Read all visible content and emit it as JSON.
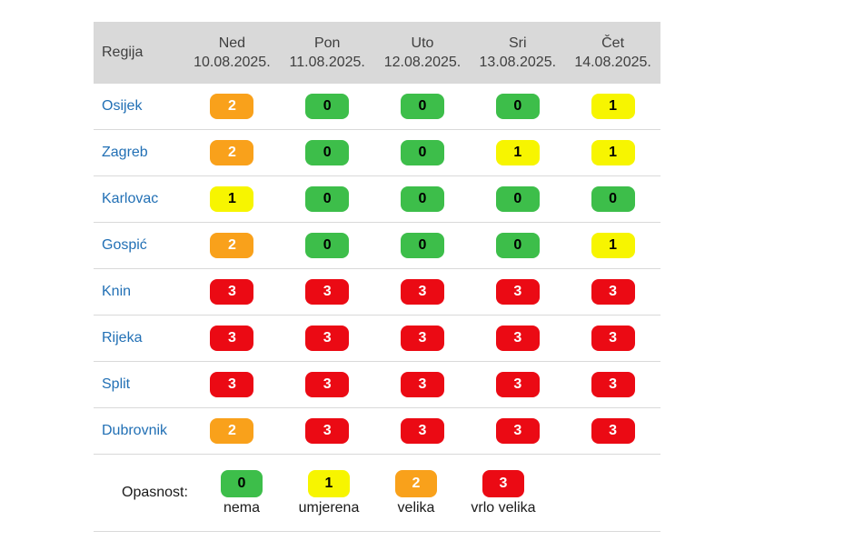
{
  "colors": {
    "header_bg": "#d9d9d9",
    "header_text": "#3f3f3f",
    "region_link": "#2270b5",
    "row_border": "#d9d9d9",
    "level0": "#3dbe4a",
    "level1": "#f7f500",
    "level2": "#f9a11b",
    "level3": "#eb0a14"
  },
  "chart_data": {
    "type": "table",
    "corner_label": "Regija",
    "columns": [
      {
        "day": "Ned",
        "date": "10.08.2025."
      },
      {
        "day": "Pon",
        "date": "11.08.2025."
      },
      {
        "day": "Uto",
        "date": "12.08.2025."
      },
      {
        "day": "Sri",
        "date": "13.08.2025."
      },
      {
        "day": "Čet",
        "date": "14.08.2025."
      }
    ],
    "rows": [
      {
        "region": "Osijek",
        "values": [
          2,
          0,
          0,
          0,
          1
        ]
      },
      {
        "region": "Zagreb",
        "values": [
          2,
          0,
          0,
          1,
          1
        ]
      },
      {
        "region": "Karlovac",
        "values": [
          1,
          0,
          0,
          0,
          0
        ]
      },
      {
        "region": "Gospić",
        "values": [
          2,
          0,
          0,
          0,
          1
        ]
      },
      {
        "region": "Knin",
        "values": [
          3,
          3,
          3,
          3,
          3
        ]
      },
      {
        "region": "Rijeka",
        "values": [
          3,
          3,
          3,
          3,
          3
        ]
      },
      {
        "region": "Split",
        "values": [
          3,
          3,
          3,
          3,
          3
        ]
      },
      {
        "region": "Dubrovnik",
        "values": [
          2,
          3,
          3,
          3,
          3
        ]
      }
    ],
    "legend_label": "Opasnost:",
    "scale": [
      {
        "value": 0,
        "label": "nema",
        "color": "#3dbe4a"
      },
      {
        "value": 1,
        "label": "umjerena",
        "color": "#f7f500"
      },
      {
        "value": 2,
        "label": "velika",
        "color": "#f9a11b"
      },
      {
        "value": 3,
        "label": "vrlo velika",
        "color": "#eb0a14"
      }
    ]
  }
}
